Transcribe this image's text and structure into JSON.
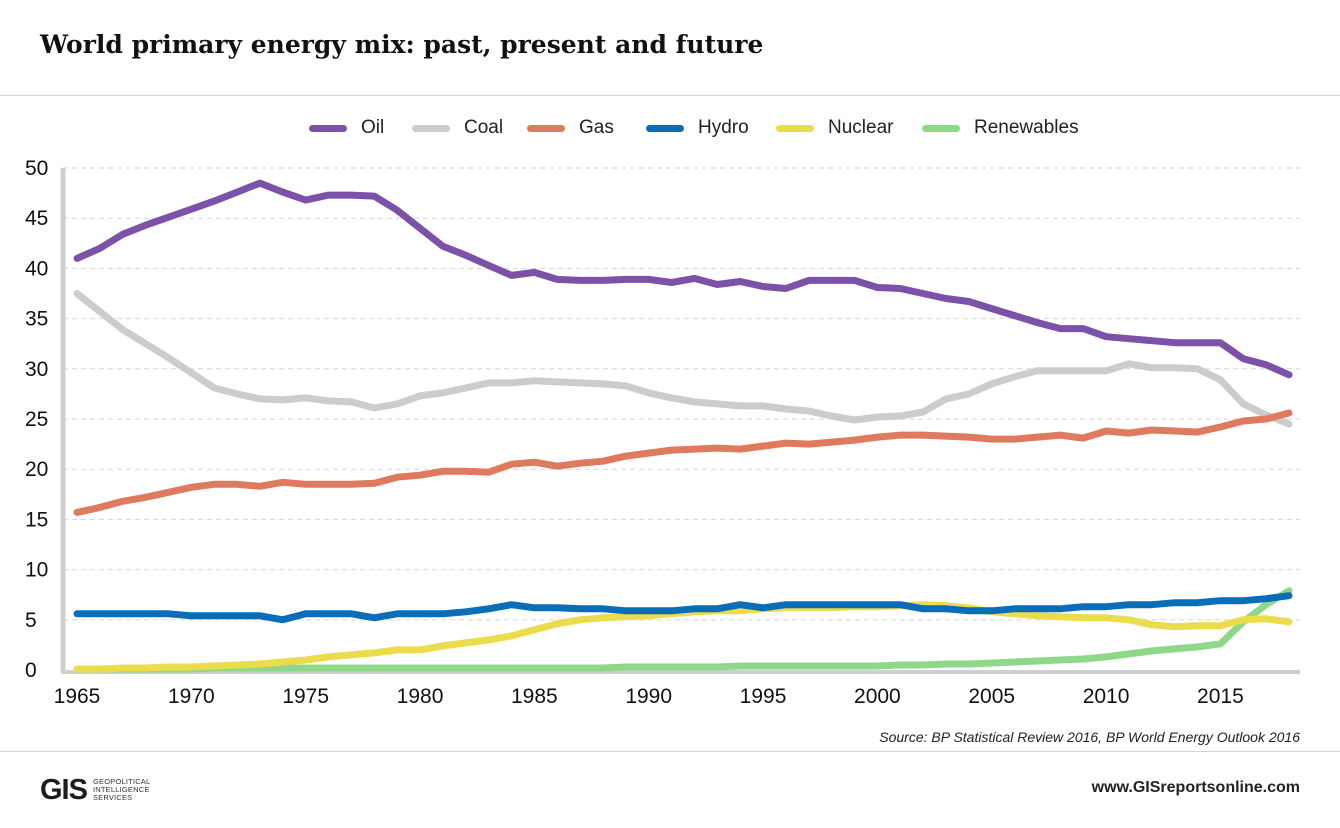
{
  "header": {
    "title": "World primary energy mix: past, present and future"
  },
  "chart_data": {
    "type": "line",
    "title": "World primary energy mix: past, present and future",
    "xlabel": "",
    "ylabel": "",
    "xlim": [
      1965,
      2018
    ],
    "ylim": [
      0,
      50
    ],
    "x_ticks": [
      "1965",
      "1970",
      "1975",
      "1980",
      "1985",
      "1990",
      "1995",
      "2000",
      "2005",
      "2010",
      "2015"
    ],
    "y_ticks": [
      "0",
      "5",
      "10",
      "15",
      "20",
      "25",
      "30",
      "35",
      "40",
      "45",
      "50"
    ],
    "grid": "horizontal dashed",
    "legend_position": "top",
    "x": [
      1965,
      1966,
      1967,
      1968,
      1969,
      1970,
      1971,
      1972,
      1973,
      1974,
      1975,
      1976,
      1977,
      1978,
      1979,
      1980,
      1981,
      1982,
      1983,
      1984,
      1985,
      1986,
      1987,
      1988,
      1989,
      1990,
      1991,
      1992,
      1993,
      1994,
      1995,
      1996,
      1997,
      1998,
      1999,
      2000,
      2001,
      2002,
      2003,
      2004,
      2005,
      2006,
      2007,
      2008,
      2009,
      2010,
      2011,
      2012,
      2013,
      2014,
      2015,
      2016,
      2017,
      2018
    ],
    "series": [
      {
        "name": "Oil",
        "color": "#7b52a8",
        "values": [
          41.0,
          42.0,
          43.4,
          44.3,
          45.1,
          45.9,
          46.7,
          47.6,
          48.5,
          47.6,
          46.8,
          47.3,
          47.3,
          47.2,
          45.8,
          44.0,
          42.2,
          41.3,
          40.3,
          39.3,
          39.6,
          38.9,
          38.8,
          38.8,
          38.9,
          38.9,
          38.6,
          39.0,
          38.4,
          38.7,
          38.2,
          38.0,
          38.8,
          38.8,
          38.8,
          38.1,
          38.0,
          37.5,
          37.0,
          36.7,
          36.0,
          35.3,
          34.6,
          34.0,
          34.0,
          33.2,
          33.0,
          32.8,
          32.6,
          32.6,
          32.6,
          31.0,
          30.4,
          29.4
        ]
      },
      {
        "name": "Coal",
        "color": "#cccccc",
        "values": [
          37.5,
          35.7,
          33.9,
          32.5,
          31.1,
          29.6,
          28.1,
          27.5,
          27.0,
          26.9,
          27.1,
          26.8,
          26.7,
          26.1,
          26.5,
          27.3,
          27.6,
          28.1,
          28.6,
          28.6,
          28.8,
          28.7,
          28.6,
          28.5,
          28.3,
          27.6,
          27.1,
          26.7,
          26.5,
          26.3,
          26.3,
          26.0,
          25.8,
          25.3,
          24.9,
          25.2,
          25.3,
          25.7,
          27.0,
          27.5,
          28.5,
          29.2,
          29.8,
          29.8,
          29.8,
          29.8,
          30.5,
          30.1,
          30.1,
          30.0,
          28.9,
          26.5,
          25.4,
          24.5
        ]
      },
      {
        "name": "Gas",
        "color": "#e07a5f",
        "values": [
          15.7,
          16.2,
          16.8,
          17.2,
          17.7,
          18.2,
          18.5,
          18.5,
          18.3,
          18.7,
          18.5,
          18.5,
          18.5,
          18.6,
          19.2,
          19.4,
          19.8,
          19.8,
          19.7,
          20.5,
          20.7,
          20.3,
          20.6,
          20.8,
          21.3,
          21.6,
          21.9,
          22.0,
          22.1,
          22.0,
          22.3,
          22.6,
          22.5,
          22.7,
          22.9,
          23.2,
          23.4,
          23.4,
          23.3,
          23.2,
          23.0,
          23.0,
          23.2,
          23.4,
          23.1,
          23.8,
          23.6,
          23.9,
          23.8,
          23.7,
          24.2,
          24.8,
          25.0,
          25.6
        ]
      },
      {
        "name": "Hydro",
        "color": "#0a6db8",
        "values": [
          5.6,
          5.6,
          5.6,
          5.6,
          5.6,
          5.4,
          5.4,
          5.4,
          5.4,
          5.0,
          5.6,
          5.6,
          5.6,
          5.2,
          5.6,
          5.6,
          5.6,
          5.8,
          6.1,
          6.5,
          6.2,
          6.2,
          6.1,
          6.1,
          5.9,
          5.9,
          5.9,
          6.1,
          6.1,
          6.5,
          6.2,
          6.5,
          6.5,
          6.5,
          6.5,
          6.5,
          6.5,
          6.1,
          6.1,
          5.9,
          5.9,
          6.1,
          6.1,
          6.1,
          6.3,
          6.3,
          6.5,
          6.5,
          6.7,
          6.7,
          6.9,
          6.9,
          7.1,
          7.4
        ]
      },
      {
        "name": "Nuclear",
        "color": "#ebdc4b",
        "values": [
          0.1,
          0.1,
          0.2,
          0.2,
          0.3,
          0.3,
          0.4,
          0.5,
          0.6,
          0.8,
          1.0,
          1.3,
          1.5,
          1.7,
          2.0,
          2.0,
          2.4,
          2.7,
          3.0,
          3.4,
          4.0,
          4.6,
          5.0,
          5.2,
          5.3,
          5.4,
          5.6,
          5.8,
          5.9,
          5.9,
          6.1,
          6.2,
          6.2,
          6.2,
          6.3,
          6.3,
          6.4,
          6.5,
          6.4,
          6.2,
          5.8,
          5.6,
          5.4,
          5.3,
          5.2,
          5.2,
          5.0,
          4.5,
          4.3,
          4.4,
          4.4,
          5.0,
          5.1,
          4.8
        ]
      },
      {
        "name": "Renewables",
        "color": "#8fd88a",
        "values": [
          0.1,
          0.1,
          0.1,
          0.1,
          0.1,
          0.1,
          0.2,
          0.2,
          0.2,
          0.2,
          0.2,
          0.2,
          0.2,
          0.2,
          0.2,
          0.2,
          0.2,
          0.2,
          0.2,
          0.2,
          0.2,
          0.2,
          0.2,
          0.2,
          0.3,
          0.3,
          0.3,
          0.3,
          0.3,
          0.4,
          0.4,
          0.4,
          0.4,
          0.4,
          0.4,
          0.4,
          0.5,
          0.5,
          0.6,
          0.6,
          0.7,
          0.8,
          0.9,
          1.0,
          1.1,
          1.3,
          1.6,
          1.9,
          2.1,
          2.3,
          2.6,
          4.8,
          6.5,
          7.9
        ]
      }
    ]
  },
  "footer": {
    "source": "Source: BP Statistical Review 2016, BP World Energy Outlook 2016",
    "logo_mark": "GIS",
    "logo_lines": [
      "Geopolitical",
      "Intelligence",
      "Services"
    ],
    "website": "www.GISreportsonline.com"
  }
}
